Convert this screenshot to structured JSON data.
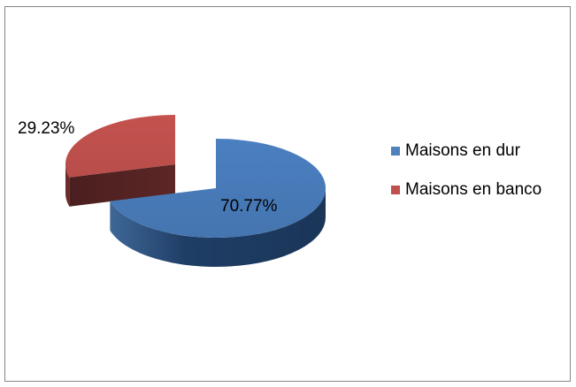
{
  "chart_data": {
    "type": "pie",
    "style": "3d-exploded",
    "categories": [
      "Maisons en dur",
      "Maisons en banco"
    ],
    "values": [
      70.77,
      29.23
    ],
    "data_labels": [
      "70.77%",
      "29.23%"
    ],
    "colors": [
      "#4F81BD",
      "#C0504D"
    ],
    "title": "",
    "legend_position": "right"
  }
}
